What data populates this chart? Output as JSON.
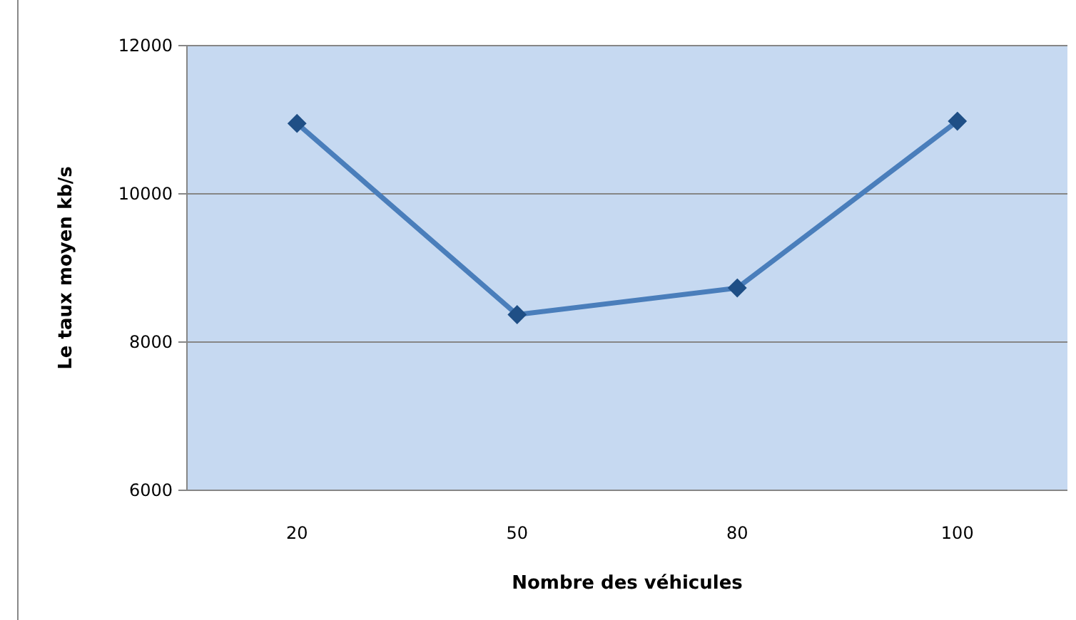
{
  "chart_data": {
    "type": "line",
    "xlabel": "Nombre des véhicules",
    "ylabel": "Le taux moyen kb/s",
    "categories": [
      "20",
      "50",
      "80",
      "100"
    ],
    "series": [
      {
        "color": "#4a7ebb",
        "values": [
          10950,
          8370,
          8730,
          10980
        ]
      }
    ],
    "ylim": [
      6000,
      12000
    ],
    "yticks": [
      6000,
      8000,
      10000,
      12000
    ],
    "grid": "y",
    "marker": "diamond",
    "line_style": "solid"
  }
}
